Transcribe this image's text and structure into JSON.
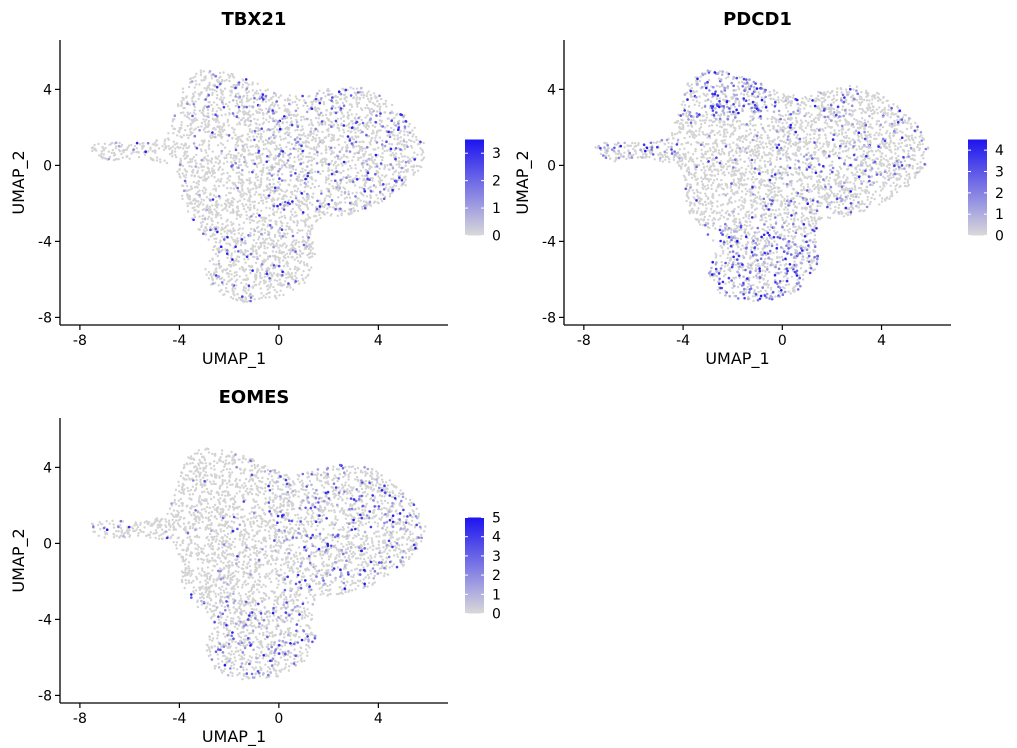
{
  "chart_data": [
    {
      "type": "scatter",
      "title": "TBX21",
      "xlabel": "UMAP_1",
      "ylabel": "UMAP_2",
      "xlim": [
        -8.8,
        6.8
      ],
      "ylim": [
        -8.4,
        6.6
      ],
      "xticks": [
        -8,
        -4,
        0,
        4
      ],
      "yticks": [
        -8,
        -4,
        0,
        4
      ],
      "grid": false,
      "legend": {
        "placement": "right",
        "scale": "continuous",
        "low_color": "#d9d9d9",
        "high_color": "#1d14f0",
        "min": 0,
        "max": 3.5,
        "ticks": [
          0,
          1,
          2,
          3
        ]
      },
      "points": {
        "base_color": "#d3d3d3",
        "clusters": [
          {
            "x": [
              -7.5,
              -4.0
            ],
            "y": [
              0.3,
              1.4
            ],
            "level": 0.04
          },
          {
            "x": [
              -4.5,
              -0.5
            ],
            "y": [
              2.4,
              5.0
            ],
            "level": 0.12
          },
          {
            "x": [
              -0.5,
              5.8
            ],
            "y": [
              -2.5,
              4.4
            ],
            "level": 0.14
          },
          {
            "x": [
              -4.0,
              1.5
            ],
            "y": [
              -3.0,
              2.0
            ],
            "level": 0.05
          },
          {
            "x": [
              -3.2,
              1.5
            ],
            "y": [
              -7.2,
              -3.0
            ],
            "level": 0.1
          }
        ]
      }
    },
    {
      "type": "scatter",
      "title": "PDCD1",
      "xlabel": "UMAP_1",
      "ylabel": "UMAP_2",
      "xlim": [
        -8.8,
        6.8
      ],
      "ylim": [
        -8.4,
        6.6
      ],
      "xticks": [
        -8,
        -4,
        0,
        4
      ],
      "yticks": [
        -8,
        -4,
        0,
        4
      ],
      "grid": false,
      "legend": {
        "placement": "right",
        "scale": "continuous",
        "low_color": "#d9d9d9",
        "high_color": "#1d14f0",
        "min": 0,
        "max": 4.5,
        "ticks": [
          0,
          1,
          2,
          3,
          4
        ]
      },
      "points": {
        "base_color": "#d3d3d3",
        "clusters": [
          {
            "x": [
              -7.5,
              -4.0
            ],
            "y": [
              0.3,
              1.4
            ],
            "level": 0.2
          },
          {
            "x": [
              -4.5,
              -0.5
            ],
            "y": [
              2.4,
              5.2
            ],
            "level": 0.42
          },
          {
            "x": [
              -0.5,
              5.8
            ],
            "y": [
              -2.5,
              4.4
            ],
            "level": 0.12
          },
          {
            "x": [
              -4.0,
              1.5
            ],
            "y": [
              -3.0,
              2.0
            ],
            "level": 0.05
          },
          {
            "x": [
              -3.2,
              1.5
            ],
            "y": [
              -7.2,
              -3.0
            ],
            "level": 0.32
          }
        ]
      }
    },
    {
      "type": "scatter",
      "title": "EOMES",
      "xlabel": "UMAP_1",
      "ylabel": "UMAP_2",
      "xlim": [
        -8.8,
        6.8
      ],
      "ylim": [
        -8.4,
        6.6
      ],
      "xticks": [
        -8,
        -4,
        0,
        4
      ],
      "yticks": [
        -8,
        -4,
        0,
        4
      ],
      "grid": false,
      "legend": {
        "placement": "right",
        "scale": "continuous",
        "low_color": "#d9d9d9",
        "high_color": "#1d14f0",
        "min": 0,
        "max": 5,
        "ticks": [
          0,
          1,
          2,
          3,
          4,
          5
        ]
      },
      "points": {
        "base_color": "#d3d3d3",
        "clusters": [
          {
            "x": [
              -7.5,
              -4.0
            ],
            "y": [
              0.3,
              1.4
            ],
            "level": 0.03
          },
          {
            "x": [
              -4.5,
              -0.5
            ],
            "y": [
              2.4,
              5.2
            ],
            "level": 0.03
          },
          {
            "x": [
              -0.5,
              5.8
            ],
            "y": [
              -2.5,
              4.4
            ],
            "level": 0.16
          },
          {
            "x": [
              -4.0,
              1.5
            ],
            "y": [
              -3.0,
              2.0
            ],
            "level": 0.04
          },
          {
            "x": [
              -3.2,
              1.5
            ],
            "y": [
              -7.2,
              -3.0
            ],
            "level": 0.22
          }
        ]
      }
    }
  ]
}
